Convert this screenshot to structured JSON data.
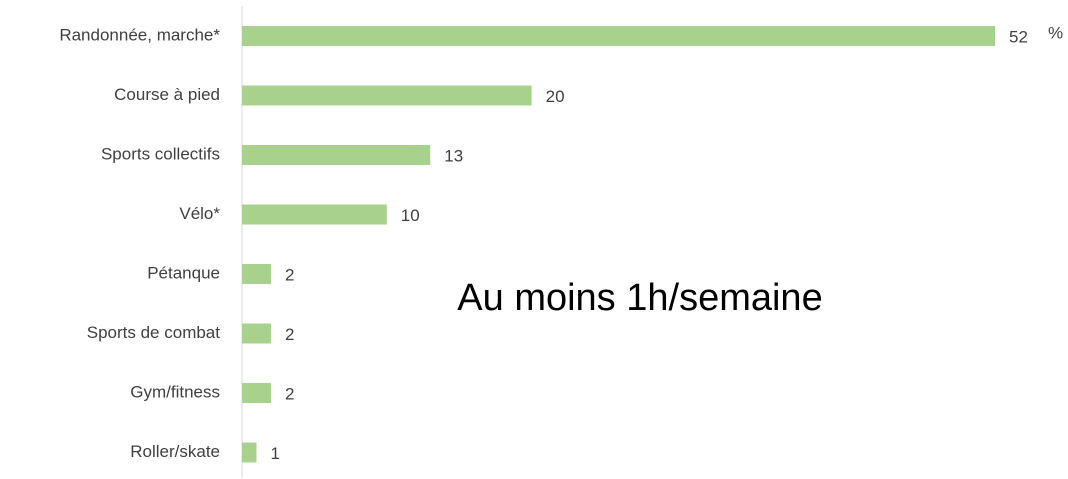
{
  "chart_data": {
    "type": "bar",
    "orientation": "horizontal",
    "categories": [
      "Randonnée, marche*",
      "Course à pied",
      "Sports collectifs",
      "Vélo*",
      "Pétanque",
      "Sports de combat",
      "Gym/fitness",
      "Roller/skate"
    ],
    "values": [
      52,
      20,
      13,
      10,
      2,
      2,
      2,
      1
    ],
    "color": "#a9d18e",
    "unit": "%",
    "annotation": "Au moins 1h/semaine"
  }
}
